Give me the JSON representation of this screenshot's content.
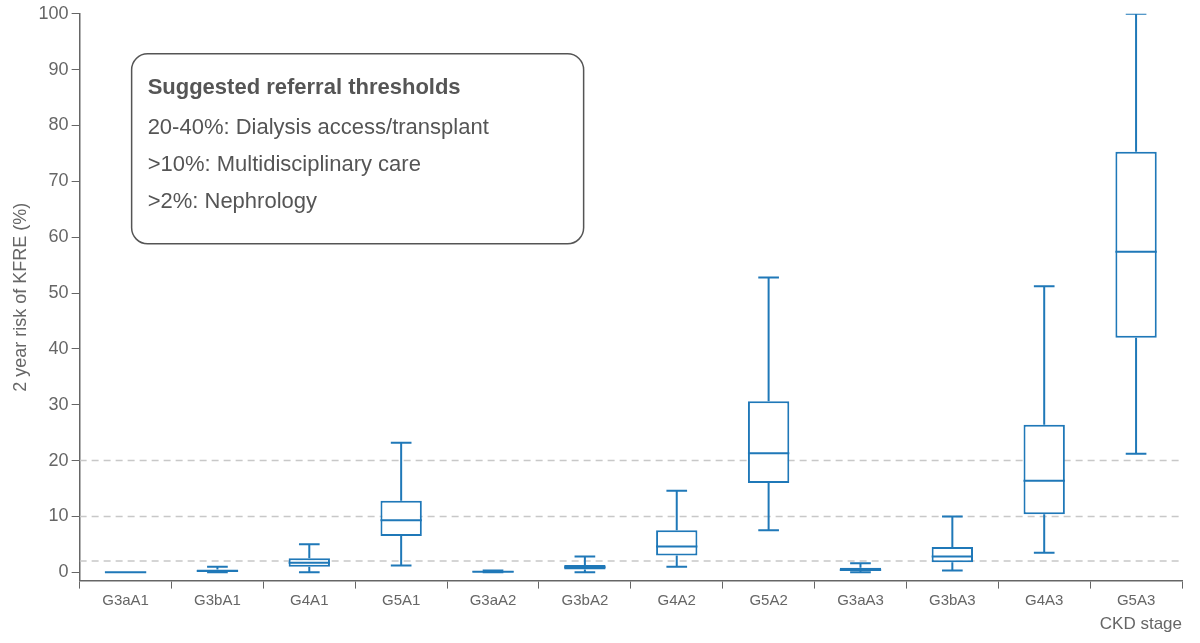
{
  "chart_data": {
    "type": "boxplot",
    "x_label": "CKD stage",
    "y_label": "2 year risk of KFRE (%)",
    "categories": [
      "G3aA1",
      "G3bA1",
      "G4A1",
      "G5A1",
      "G3aA2",
      "G3bA2",
      "G4A2",
      "G5A2",
      "G3aA3",
      "G3bA3",
      "G4A3",
      "G5A3"
    ],
    "boxes": [
      {
        "min": 0,
        "q1": 0,
        "median": 0,
        "q3": 0,
        "max": 0
      },
      {
        "min": 0,
        "q1": 0,
        "median": 0.2,
        "q3": 0.5,
        "max": 1
      },
      {
        "min": 0,
        "q1": 1,
        "median": 1.7,
        "q3": 2.5,
        "max": 5
      },
      {
        "min": 1.2,
        "q1": 6.5,
        "median": 9.3,
        "q3": 12.8,
        "max": 23.2
      },
      {
        "min": 0,
        "q1": 0,
        "median": 0.1,
        "q3": 0.2,
        "max": 0.3
      },
      {
        "min": 0,
        "q1": 0.5,
        "median": 0.9,
        "q3": 1.3,
        "max": 2.8
      },
      {
        "min": 1,
        "q1": 3,
        "median": 4.6,
        "q3": 7.5,
        "max": 14.6
      },
      {
        "min": 7.5,
        "q1": 16,
        "median": 21.3,
        "q3": 30.6,
        "max": 52.8
      },
      {
        "min": 0,
        "q1": 0.2,
        "median": 0.4,
        "q3": 0.8,
        "max": 1.6
      },
      {
        "min": 0.3,
        "q1": 1.8,
        "median": 2.8,
        "q3": 4.5,
        "max": 10
      },
      {
        "min": 3.5,
        "q1": 10.4,
        "median": 16.4,
        "q3": 26.4,
        "max": 51.2
      },
      {
        "min": 21.2,
        "q1": 42,
        "median": 57.4,
        "q3": 75.3,
        "max": 100
      }
    ],
    "color": "#1f78b8",
    "ylim": [
      -1.5,
      100
    ],
    "yticks": [
      0,
      10,
      20,
      30,
      40,
      50,
      60,
      70,
      80,
      90,
      100
    ],
    "grid": false,
    "reference_lines": [
      2,
      10,
      20
    ],
    "annotation": {
      "title": "Suggested referral thresholds",
      "lines": [
        "20-40%: Dialysis access/transplant",
        ">10%: Multidisciplinary care",
        ">2%: Nephrology"
      ]
    }
  }
}
